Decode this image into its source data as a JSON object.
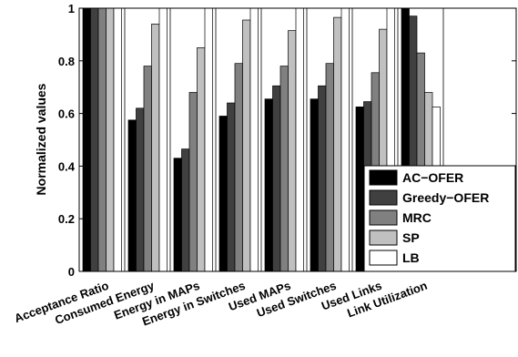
{
  "chart_data": {
    "type": "bar",
    "title": "",
    "xlabel": "",
    "ylabel": "Normalized values",
    "ylim": [
      0,
      1
    ],
    "yticks": [
      0,
      0.2,
      0.4,
      0.6,
      0.8,
      1
    ],
    "ytick_labels": [
      "0",
      "0.2",
      "0.4",
      "0.6",
      "0.8",
      "1"
    ],
    "grid": false,
    "legend_position": "bottom-right",
    "categories": [
      "Acceptance Ratio",
      "Consumed Energy",
      "Energy in MAPs",
      "Energy in Switches",
      "Used MAPs",
      "Used Switches",
      "Used Links",
      "Link Utilization"
    ],
    "series": [
      {
        "name": "AC−OFER",
        "color": "#000000",
        "values": [
          1.0,
          0.575,
          0.43,
          0.59,
          0.655,
          0.655,
          0.625,
          1.0
        ]
      },
      {
        "name": "Greedy−OFER",
        "color": "#404040",
        "values": [
          1.0,
          0.62,
          0.465,
          0.64,
          0.705,
          0.705,
          0.645,
          0.97
        ]
      },
      {
        "name": "MRC",
        "color": "#808080",
        "values": [
          1.0,
          0.78,
          0.68,
          0.79,
          0.78,
          0.79,
          0.755,
          0.83
        ]
      },
      {
        "name": "SP",
        "color": "#c0c0c0",
        "values": [
          1.0,
          0.94,
          0.85,
          0.955,
          0.915,
          0.965,
          0.92,
          0.68
        ]
      },
      {
        "name": "LB",
        "color": "#ffffff",
        "values": [
          1.0,
          1.0,
          1.0,
          1.0,
          1.0,
          1.0,
          1.0,
          0.625
        ]
      }
    ]
  }
}
